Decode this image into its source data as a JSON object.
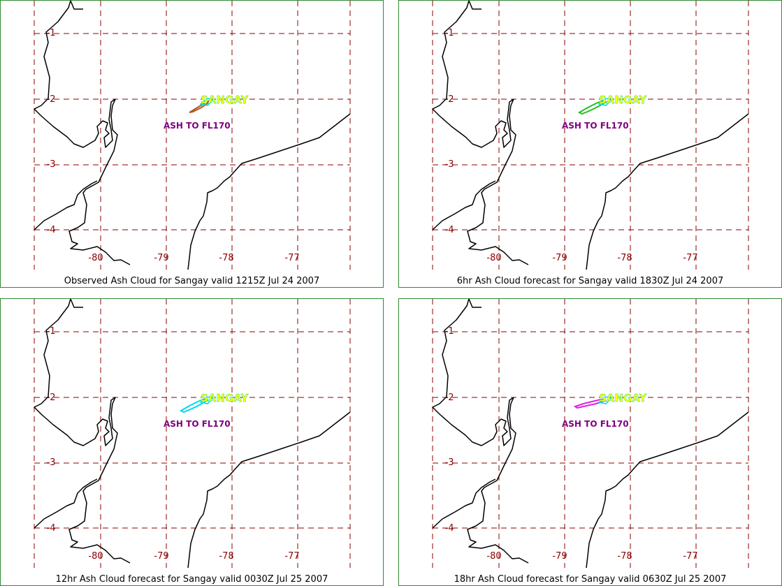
{
  "colors": {
    "grid": "#8b0000",
    "coast": "#000000",
    "border": "#2e8b2e",
    "volcano_label": "#ffff00",
    "volcano_label_outline": "#00d0d0",
    "annotation": "#800080"
  },
  "axis_labels": {
    "lat": [
      "-1",
      "-2",
      "-3",
      "-4"
    ],
    "lon": [
      "-80",
      "-79",
      "-78",
      "-77"
    ]
  },
  "volcano_name": "SANGAY",
  "annotation_text": "ASH TO FL170",
  "panels": [
    {
      "title": "Observed Ash Cloud for Sangay valid 1215Z Jul 24 2007",
      "ash_color": "#b05a20",
      "ash_secondary": "#00e0e0",
      "ash_extent": "short"
    },
    {
      "title": "6hr Ash Cloud forecast for Sangay valid 1830Z Jul 24 2007",
      "ash_color": "#20c020",
      "ash_secondary": "#00e0e0",
      "ash_extent": "medium"
    },
    {
      "title": "12hr Ash Cloud forecast for Sangay valid 0030Z Jul 25 2007",
      "ash_color": "#00d8e8",
      "ash_secondary": "#00e0e0",
      "ash_extent": "medium"
    },
    {
      "title": "18hr Ash Cloud forecast for Sangay valid 0630Z Jul 25 2007",
      "ash_color": "#e020e0",
      "ash_secondary": "#00e0e0",
      "ash_extent": "long"
    }
  ]
}
